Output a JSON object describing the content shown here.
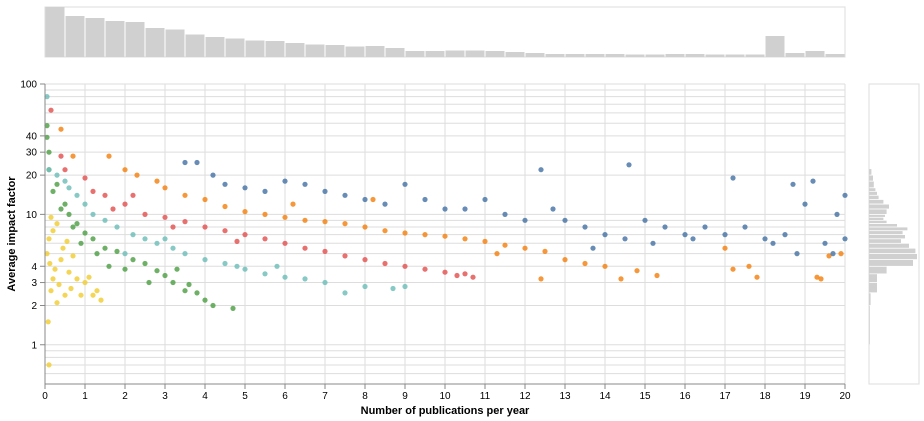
{
  "chart_data": {
    "type": "scatter",
    "xlabel": "Number of publications per year",
    "ylabel": "Average impact factor",
    "x_scale": "linear",
    "y_scale": "log",
    "xlim": [
      0,
      20
    ],
    "ylim": [
      0.5,
      100
    ],
    "x_ticks": [
      "0",
      "1",
      "2",
      "3",
      "4",
      "5",
      "6",
      "7",
      "8",
      "9",
      "10",
      "11",
      "12",
      "13",
      "14",
      "15",
      "16",
      "17",
      "18",
      "19",
      "20"
    ],
    "y_ticks": [
      {
        "value": 1,
        "label": "1"
      },
      {
        "value": 2,
        "label": "2"
      },
      {
        "value": 3,
        "label": "3"
      },
      {
        "value": 4,
        "label": "4"
      },
      {
        "value": 10,
        "label": "10"
      },
      {
        "value": 20,
        "label": "20"
      },
      {
        "value": 30,
        "label": "30"
      },
      {
        "value": 40,
        "label": "40"
      },
      {
        "value": 100,
        "label": "100"
      }
    ],
    "grid": true,
    "legend": "none",
    "colors": [
      "#f2cf3a",
      "#54a24b",
      "#72bfbb",
      "#e45756",
      "#f58518",
      "#4c78a8"
    ],
    "series": [
      {
        "color": "#f2cf3a",
        "points": [
          [
            0.1,
            0.7
          ],
          [
            0.08,
            1.5
          ],
          [
            0.3,
            2.1
          ],
          [
            0.15,
            2.6
          ],
          [
            0.5,
            2.4
          ],
          [
            0.2,
            3.2
          ],
          [
            0.9,
            2.4
          ],
          [
            1.2,
            2.4
          ],
          [
            1.4,
            2.2
          ],
          [
            0.05,
            5.0
          ],
          [
            0.1,
            6.5
          ],
          [
            0.2,
            7.5
          ],
          [
            0.3,
            8.5
          ],
          [
            0.15,
            9.5
          ],
          [
            0.4,
            4.5
          ],
          [
            0.6,
            3.6
          ],
          [
            0.8,
            3.2
          ],
          [
            1.0,
            3.0
          ],
          [
            0.25,
            3.8
          ],
          [
            0.45,
            5.5
          ],
          [
            0.7,
            4.8
          ],
          [
            1.1,
            3.3
          ],
          [
            0.35,
            2.9
          ],
          [
            0.55,
            6.2
          ],
          [
            0.12,
            4.2
          ],
          [
            1.3,
            2.6
          ],
          [
            0.65,
            2.7
          ]
        ]
      },
      {
        "color": "#54a24b",
        "points": [
          [
            0.05,
            48
          ],
          [
            0.05,
            39
          ],
          [
            0.1,
            30
          ],
          [
            0.3,
            17
          ],
          [
            0.5,
            12
          ],
          [
            0.2,
            15
          ],
          [
            0.1,
            22
          ],
          [
            0.8,
            8.5
          ],
          [
            0.6,
            10
          ],
          [
            1.0,
            7.2
          ],
          [
            1.2,
            6.5
          ],
          [
            1.5,
            5.5
          ],
          [
            1.8,
            5.2
          ],
          [
            2.2,
            4.5
          ],
          [
            2.5,
            4.2
          ],
          [
            2.8,
            3.7
          ],
          [
            3.0,
            3.4
          ],
          [
            3.2,
            3.0
          ],
          [
            3.5,
            2.6
          ],
          [
            3.8,
            2.5
          ],
          [
            4.0,
            2.2
          ],
          [
            4.2,
            2.0
          ],
          [
            4.7,
            1.9
          ],
          [
            2.0,
            3.8
          ],
          [
            1.6,
            4.0
          ],
          [
            1.3,
            5.0
          ],
          [
            0.9,
            6.0
          ],
          [
            2.6,
            3.0
          ],
          [
            3.3,
            3.8
          ],
          [
            0.7,
            8.0
          ],
          [
            0.4,
            11
          ],
          [
            3.6,
            2.9
          ]
        ]
      },
      {
        "color": "#72bfbb",
        "points": [
          [
            0.05,
            80
          ],
          [
            0.1,
            22
          ],
          [
            0.3,
            20
          ],
          [
            0.5,
            18
          ],
          [
            0.8,
            14
          ],
          [
            1.2,
            10
          ],
          [
            1.5,
            9.0
          ],
          [
            1.8,
            8.0
          ],
          [
            2.2,
            7.0
          ],
          [
            2.5,
            6.5
          ],
          [
            2.8,
            6.0
          ],
          [
            3.2,
            5.5
          ],
          [
            3.5,
            5.0
          ],
          [
            4.0,
            4.5
          ],
          [
            4.5,
            4.2
          ],
          [
            5.0,
            3.8
          ],
          [
            5.5,
            3.5
          ],
          [
            6.0,
            3.3
          ],
          [
            6.5,
            3.2
          ],
          [
            7.0,
            3.0
          ],
          [
            7.5,
            2.5
          ],
          [
            8.0,
            2.8
          ],
          [
            8.7,
            2.7
          ],
          [
            9.0,
            2.8
          ],
          [
            2.0,
            5.0
          ],
          [
            3.0,
            6.5
          ],
          [
            1.0,
            12
          ],
          [
            0.6,
            16
          ],
          [
            4.8,
            4.0
          ],
          [
            5.8,
            4.0
          ]
        ]
      },
      {
        "color": "#e45756",
        "points": [
          [
            0.15,
            63
          ],
          [
            0.4,
            28
          ],
          [
            0.5,
            22
          ],
          [
            1.0,
            19
          ],
          [
            1.2,
            15
          ],
          [
            1.5,
            14
          ],
          [
            2.0,
            12
          ],
          [
            2.5,
            10
          ],
          [
            3.0,
            9.5
          ],
          [
            3.5,
            8.8
          ],
          [
            4.0,
            8.0
          ],
          [
            4.5,
            7.5
          ],
          [
            5.0,
            7.0
          ],
          [
            5.5,
            6.5
          ],
          [
            6.0,
            6.0
          ],
          [
            6.5,
            5.5
          ],
          [
            7.0,
            5.2
          ],
          [
            7.5,
            4.8
          ],
          [
            8.0,
            4.5
          ],
          [
            8.5,
            4.2
          ],
          [
            9.0,
            4.0
          ],
          [
            9.5,
            3.8
          ],
          [
            10.0,
            3.6
          ],
          [
            10.5,
            3.5
          ],
          [
            10.7,
            3.3
          ],
          [
            10.3,
            3.4
          ],
          [
            2.2,
            14
          ],
          [
            3.2,
            8.0
          ],
          [
            4.8,
            6.2
          ],
          [
            1.7,
            11
          ]
        ]
      },
      {
        "color": "#f58518",
        "points": [
          [
            0.4,
            45
          ],
          [
            0.7,
            28
          ],
          [
            1.6,
            28
          ],
          [
            2.0,
            22
          ],
          [
            2.3,
            20
          ],
          [
            2.8,
            18
          ],
          [
            3.0,
            16
          ],
          [
            3.5,
            14
          ],
          [
            4.0,
            13
          ],
          [
            4.5,
            11.5
          ],
          [
            5.0,
            10.5
          ],
          [
            5.5,
            10.0
          ],
          [
            6.0,
            9.5
          ],
          [
            6.5,
            9.0
          ],
          [
            7.0,
            8.8
          ],
          [
            7.5,
            8.5
          ],
          [
            8.0,
            8.0
          ],
          [
            8.5,
            7.5
          ],
          [
            9.0,
            7.2
          ],
          [
            9.5,
            7.0
          ],
          [
            10.0,
            6.8
          ],
          [
            10.5,
            6.5
          ],
          [
            11.0,
            6.2
          ],
          [
            11.5,
            5.8
          ],
          [
            12.0,
            5.5
          ],
          [
            12.5,
            5.2
          ],
          [
            12.4,
            3.2
          ],
          [
            13.0,
            4.5
          ],
          [
            13.5,
            4.2
          ],
          [
            14.0,
            4.0
          ],
          [
            14.4,
            3.2
          ],
          [
            14.8,
            3.7
          ],
          [
            15.3,
            3.4
          ],
          [
            17.0,
            5.5
          ],
          [
            17.2,
            3.8
          ],
          [
            17.6,
            4.0
          ],
          [
            17.8,
            3.3
          ],
          [
            19.3,
            3.3
          ],
          [
            19.4,
            3.2
          ],
          [
            19.6,
            4.8
          ],
          [
            19.9,
            5.0
          ],
          [
            11.3,
            5.0
          ],
          [
            6.2,
            12
          ],
          [
            8.2,
            13
          ]
        ]
      },
      {
        "color": "#4c78a8",
        "points": [
          [
            3.5,
            25
          ],
          [
            3.8,
            25
          ],
          [
            4.2,
            20
          ],
          [
            4.5,
            17
          ],
          [
            5.0,
            16
          ],
          [
            5.5,
            15
          ],
          [
            6.0,
            18
          ],
          [
            6.5,
            17
          ],
          [
            7.0,
            15
          ],
          [
            7.5,
            14
          ],
          [
            8.0,
            13
          ],
          [
            8.5,
            12
          ],
          [
            9.0,
            17
          ],
          [
            9.5,
            13
          ],
          [
            10.0,
            11
          ],
          [
            10.5,
            11
          ],
          [
            11.0,
            13
          ],
          [
            11.5,
            10
          ],
          [
            12.0,
            9
          ],
          [
            12.4,
            22
          ],
          [
            12.7,
            11
          ],
          [
            13.0,
            9
          ],
          [
            13.5,
            8
          ],
          [
            14.0,
            7
          ],
          [
            14.5,
            6.5
          ],
          [
            14.6,
            24
          ],
          [
            15.0,
            9
          ],
          [
            15.5,
            8
          ],
          [
            16.0,
            7
          ],
          [
            16.5,
            8
          ],
          [
            17.0,
            7
          ],
          [
            17.2,
            19
          ],
          [
            17.5,
            8
          ],
          [
            18.0,
            6.5
          ],
          [
            18.2,
            6
          ],
          [
            18.5,
            7
          ],
          [
            18.7,
            17
          ],
          [
            18.8,
            5
          ],
          [
            19.0,
            12
          ],
          [
            19.2,
            18
          ],
          [
            19.5,
            6
          ],
          [
            19.7,
            5
          ],
          [
            19.8,
            10
          ],
          [
            20.0,
            14
          ],
          [
            20.0,
            6.5
          ],
          [
            13.7,
            5.5
          ],
          [
            15.2,
            6.0
          ],
          [
            16.2,
            6.5
          ]
        ]
      }
    ],
    "top_marginal": {
      "bins_x": [
        0,
        0.5,
        1,
        1.5,
        2,
        2.5,
        3,
        3.5,
        4,
        4.5,
        5,
        5.5,
        6,
        6.5,
        7,
        7.5,
        8,
        8.5,
        9,
        9.5,
        10,
        10.5,
        11,
        11.5,
        12,
        12.5,
        13,
        13.5,
        14,
        14.5,
        15,
        15.5,
        16,
        16.5,
        17,
        17.5,
        18,
        18.5,
        19,
        19.5
      ],
      "counts": [
        100,
        82,
        78,
        72,
        70,
        58,
        55,
        45,
        40,
        37,
        33,
        32,
        28,
        25,
        24,
        21,
        22,
        18,
        12,
        12,
        13,
        13,
        12,
        10,
        8,
        6,
        6,
        6,
        6,
        5,
        5,
        6,
        6,
        5,
        5,
        5,
        42,
        8,
        12,
        6
      ]
    },
    "right_marginal": {
      "bins_y": [
        1,
        2,
        2.5,
        3,
        3.5,
        4,
        4.5,
        5,
        5.5,
        6,
        6.5,
        7,
        7.5,
        8,
        8.5,
        9,
        9.5,
        10,
        11,
        12,
        13,
        14,
        15,
        16,
        18,
        20
      ],
      "counts": [
        1,
        2,
        10,
        10,
        22,
        55,
        60,
        58,
        50,
        40,
        45,
        42,
        48,
        35,
        22,
        18,
        20,
        22,
        25,
        18,
        12,
        10,
        8,
        6,
        5,
        3
      ]
    }
  }
}
